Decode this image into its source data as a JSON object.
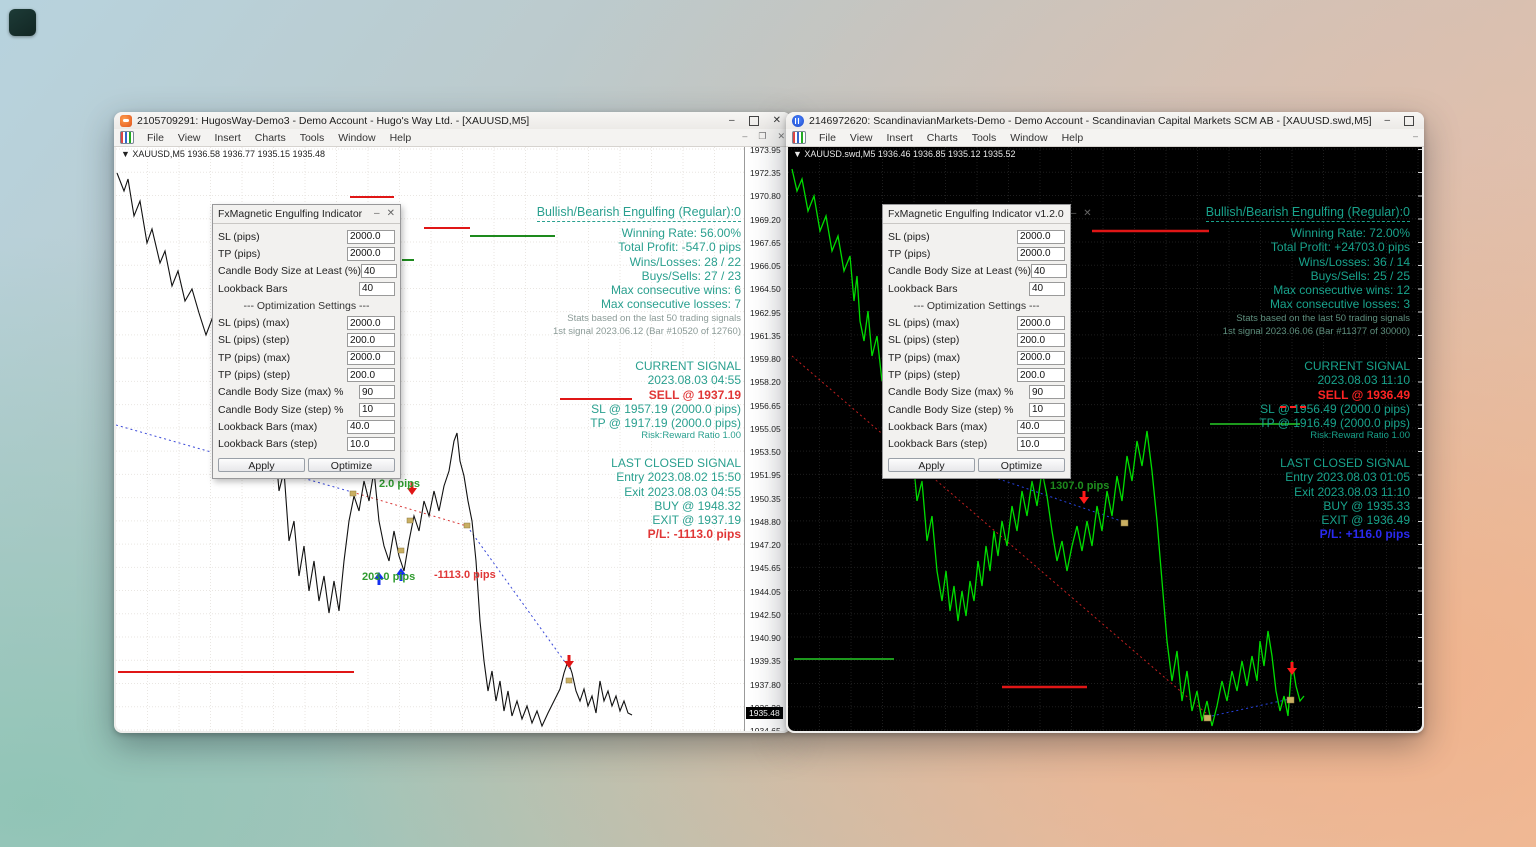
{
  "colors": {
    "left_teal": "#2aa08f",
    "left_red": "#e03636",
    "left_green": "#2f9b2f",
    "right_teal": "#18a28b",
    "right_red": "#ff2424",
    "right_blue": "#2a2af0",
    "right_green_dark": "#1f8f1f",
    "right_line_green": "#00dc00"
  },
  "icons": {
    "minimize": "–",
    "maximize": "▢",
    "restore": "❐",
    "close": "✕",
    "dropdown": "▼"
  },
  "left_window": {
    "title": "2105709291: HugosWay-Demo3 - Demo Account - Hugo's Way Ltd. - [XAUUSD,M5]",
    "menu": [
      "File",
      "View",
      "Insert",
      "Charts",
      "Tools",
      "Window",
      "Help"
    ],
    "symbol_line": "▼ XAUUSD,M5  1936.58 1936.77 1935.15 1935.48",
    "dialog": {
      "title": "FxMagnetic Engulfing Indicator",
      "fields": [
        {
          "label": "SL (pips)",
          "value": "2000.0"
        },
        {
          "label": "TP (pips)",
          "value": "2000.0"
        },
        {
          "label": "Candle Body Size at Least (%)",
          "value": "40"
        },
        {
          "label": "Lookback Bars",
          "value": "40"
        },
        {
          "section": "--- Optimization Settings ---"
        },
        {
          "label": "SL (pips) (max)",
          "value": "2000.0"
        },
        {
          "label": "SL (pips) (step)",
          "value": "200.0"
        },
        {
          "label": "TP (pips) (max)",
          "value": "2000.0"
        },
        {
          "label": "TP (pips) (step)",
          "value": "200.0"
        },
        {
          "label": "Candle Body Size (max) %",
          "value": "90"
        },
        {
          "label": "Candle Body Size (step) %",
          "value": "10"
        },
        {
          "label": "Lookback Bars (max)",
          "value": "40.0"
        },
        {
          "label": "Lookback Bars (step)",
          "value": "10.0"
        }
      ],
      "apply_label": "Apply",
      "optimize_label": "Optimize"
    },
    "stats_header": "Bullish/Bearish Engulfing (Regular):0",
    "stats_lines": [
      {
        "text": "Winning Rate: 56.00%",
        "style": ""
      },
      {
        "text": "Total Profit: -547.0 pips",
        "style": ""
      },
      {
        "text": "Wins/Losses: 28 / 22",
        "style": ""
      },
      {
        "text": "Buys/Sells: 27 / 23",
        "style": ""
      },
      {
        "text": "Max consecutive wins: 6",
        "style": ""
      },
      {
        "text": "Max consecutive losses: 7",
        "style": ""
      },
      {
        "text": "Stats based on the last 50 trading signals",
        "style": "small"
      },
      {
        "text": "1st signal 2023.06.12 (Bar #10520 of 12760)",
        "style": "small"
      }
    ],
    "current_signal_title": "CURRENT SIGNAL",
    "current_signal_lines": [
      {
        "text": "2023.08.03 04:55",
        "style": ""
      },
      {
        "text": "SELL @ 1937.19",
        "style": "red"
      },
      {
        "text": "SL @ 1957.19 (2000.0 pips)",
        "style": ""
      },
      {
        "text": "TP @ 1917.19 (2000.0 pips)",
        "style": ""
      },
      {
        "text": "Risk:Reward Ratio 1.00",
        "style": "tiny"
      }
    ],
    "last_signal_title": "LAST CLOSED SIGNAL",
    "last_signal_lines": [
      {
        "text": "Entry 2023.08.02 15:50",
        "style": ""
      },
      {
        "text": "Exit 2023.08.03 04:55",
        "style": ""
      },
      {
        "text": "BUY @ 1948.32",
        "style": ""
      },
      {
        "text": "EXIT @ 1937.19",
        "style": ""
      },
      {
        "text": "P/L: -1113.0 pips",
        "style": "red"
      }
    ],
    "annotations": {
      "a1": "2.0 pips",
      "a2": "203.0 pips",
      "a3": "-1113.0 pips"
    },
    "price_axis": [
      "1973.95",
      "1972.35",
      "1970.80",
      "1969.20",
      "1967.65",
      "1966.05",
      "1964.50",
      "1962.95",
      "1961.35",
      "1959.80",
      "1958.20",
      "1956.65",
      "1955.05",
      "1953.50",
      "1951.95",
      "1950.35",
      "1948.80",
      "1947.20",
      "1945.65",
      "1944.05",
      "1942.50",
      "1940.90",
      "1939.35",
      "1937.80",
      "1936.20",
      "1934.65"
    ],
    "current_price": "1935.48"
  },
  "right_window": {
    "title": "2146972620: ScandinavianMarkets-Demo - Demo Account - Scandinavian Capital Markets SCM AB - [XAUUSD.swd,M5]",
    "menu": [
      "File",
      "View",
      "Insert",
      "Charts",
      "Tools",
      "Window",
      "Help"
    ],
    "symbol_line": "▼ XAUUSD.swd,M5  1936.46 1936.85 1935.12 1935.52",
    "dialog": {
      "title": "FxMagnetic Engulfing Indicator v1.2.0",
      "fields": [
        {
          "label": "SL (pips)",
          "value": "2000.0"
        },
        {
          "label": "TP (pips)",
          "value": "2000.0"
        },
        {
          "label": "Candle Body Size at Least (%)",
          "value": "40"
        },
        {
          "label": "Lookback Bars",
          "value": "40"
        },
        {
          "section": "--- Optimization Settings ---"
        },
        {
          "label": "SL (pips) (max)",
          "value": "2000.0"
        },
        {
          "label": "SL (pips) (step)",
          "value": "200.0"
        },
        {
          "label": "TP (pips) (max)",
          "value": "2000.0"
        },
        {
          "label": "TP (pips) (step)",
          "value": "200.0"
        },
        {
          "label": "Candle Body Size (max) %",
          "value": "90"
        },
        {
          "label": "Candle Body Size (step) %",
          "value": "10"
        },
        {
          "label": "Lookback Bars (max)",
          "value": "40.0"
        },
        {
          "label": "Lookback Bars (step)",
          "value": "10.0"
        }
      ],
      "apply_label": "Apply",
      "optimize_label": "Optimize"
    },
    "stats_header": "Bullish/Bearish Engulfing (Regular):0",
    "stats_lines": [
      {
        "text": "Winning Rate: 72.00%",
        "style": ""
      },
      {
        "text": "Total Profit: +24703.0 pips",
        "style": ""
      },
      {
        "text": "Wins/Losses: 36 / 14",
        "style": ""
      },
      {
        "text": "Buys/Sells: 25 / 25",
        "style": ""
      },
      {
        "text": "Max consecutive wins: 12",
        "style": ""
      },
      {
        "text": "Max consecutive losses: 3",
        "style": ""
      },
      {
        "text": "Stats based on the last 50 trading signals",
        "style": "small"
      },
      {
        "text": "1st signal 2023.06.06 (Bar #11377 of 30000)",
        "style": "small"
      }
    ],
    "current_signal_title": "CURRENT SIGNAL",
    "current_signal_lines": [
      {
        "text": "2023.08.03 11:10",
        "style": ""
      },
      {
        "text": "SELL @ 1936.49",
        "style": "red"
      },
      {
        "text": "SL @ 1956.49 (2000.0 pips)",
        "style": ""
      },
      {
        "text": "TP @ 1916.49 (2000.0 pips)",
        "style": ""
      },
      {
        "text": "Risk:Reward Ratio 1.00",
        "style": "tiny"
      }
    ],
    "last_signal_title": "LAST CLOSED SIGNAL",
    "last_signal_lines": [
      {
        "text": "Entry 2023.08.03 01:05",
        "style": ""
      },
      {
        "text": "Exit 2023.08.03 11:10",
        "style": ""
      },
      {
        "text": "BUY @ 1935.33",
        "style": ""
      },
      {
        "text": "EXIT @ 1936.49",
        "style": ""
      },
      {
        "text": "P/L: +116.0 pips",
        "style": "blue"
      }
    ],
    "annotations": {
      "a1": "1307.0 pips"
    }
  }
}
